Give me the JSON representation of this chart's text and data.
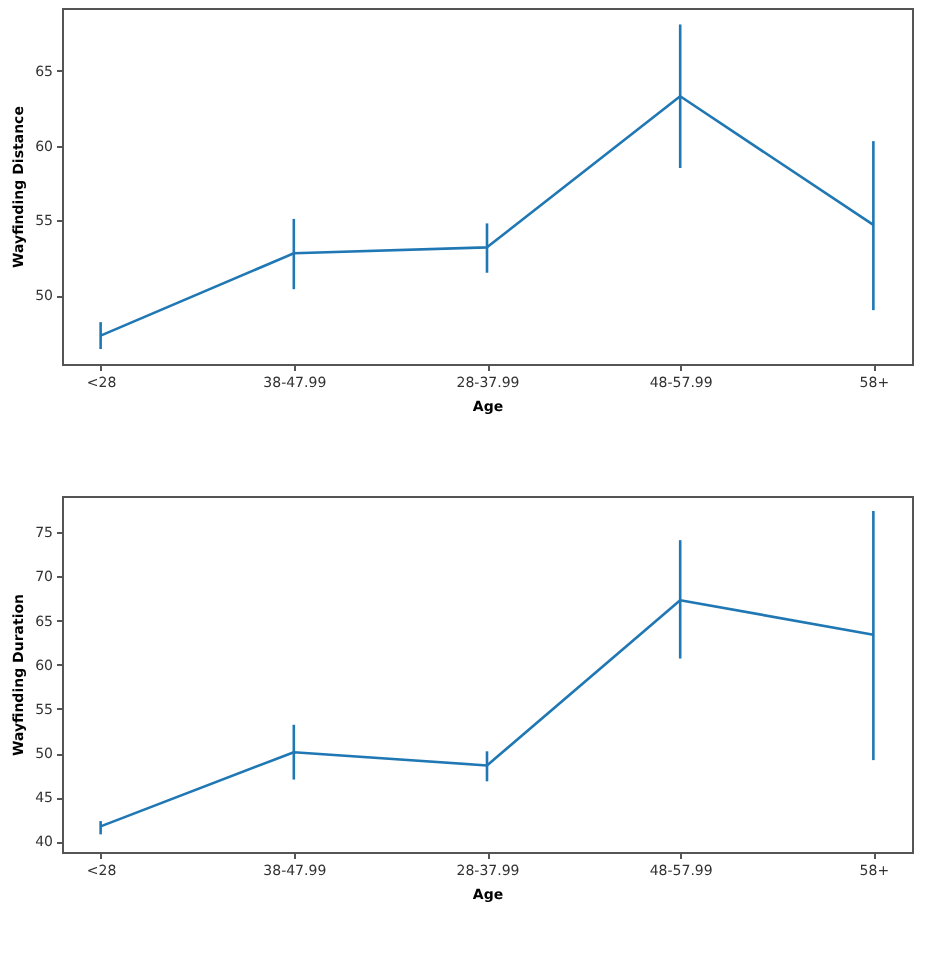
{
  "chart_data": [
    {
      "type": "line",
      "xlabel": "Age",
      "ylabel": "Wayfinding Distance",
      "categories": [
        "<28",
        "38-47.99",
        "28-37.99",
        "48-57.99",
        "58+"
      ],
      "series": [
        {
          "color": "#1f77b4",
          "values": [
            47.3,
            52.8,
            53.2,
            63.3,
            54.7
          ],
          "errors": [
            [
              46.4,
              48.2
            ],
            [
              50.4,
              55.1
            ],
            [
              51.5,
              54.8
            ],
            [
              58.5,
              68.1
            ],
            [
              49.0,
              60.3
            ]
          ]
        }
      ],
      "ylim": [
        45.4,
        69.2
      ],
      "yticks": [
        50,
        55,
        60,
        65
      ],
      "grid": false
    },
    {
      "type": "line",
      "xlabel": "Age",
      "ylabel": "Wayfinding Duration",
      "categories": [
        "<28",
        "38-47.99",
        "28-37.99",
        "48-57.99",
        "58+"
      ],
      "series": [
        {
          "color": "#1f77b4",
          "values": [
            41.7,
            50.1,
            48.6,
            67.3,
            63.4
          ],
          "errors": [
            [
              40.8,
              42.3
            ],
            [
              47.0,
              53.2
            ],
            [
              46.8,
              50.2
            ],
            [
              60.7,
              74.1
            ],
            [
              49.2,
              77.4
            ]
          ]
        }
      ],
      "ylim": [
        38.8,
        79.1
      ],
      "yticks": [
        40,
        45,
        50,
        55,
        60,
        65,
        70,
        75
      ],
      "grid": false
    }
  ]
}
